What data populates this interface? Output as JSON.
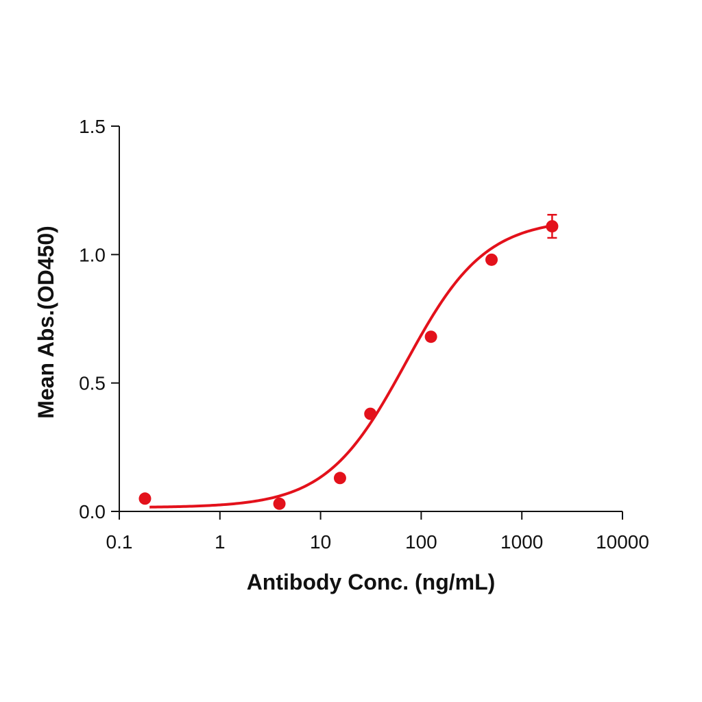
{
  "chart_data": {
    "type": "scatter",
    "title": "",
    "xlabel": "Antibody Conc. (ng/mL)",
    "ylabel": "Mean Abs.(OD450)",
    "x_scale": "log",
    "xlim": [
      0.1,
      10000
    ],
    "ylim": [
      0,
      1.5
    ],
    "x_ticks": [
      0.1,
      1,
      10,
      100,
      1000,
      10000
    ],
    "x_tick_labels": [
      "0.1",
      "1",
      "10",
      "100",
      "1000",
      "10000"
    ],
    "y_ticks": [
      0,
      0.5,
      1.0,
      1.5
    ],
    "y_tick_labels": [
      "0.0",
      "0.5",
      "1.0",
      "1.5"
    ],
    "grid": false,
    "legend": "none",
    "series": [
      {
        "color": "#e3111b",
        "points": [
          {
            "x": 0.18,
            "y": 0.05
          },
          {
            "x": 3.9,
            "y": 0.03
          },
          {
            "x": 15.6,
            "y": 0.13
          },
          {
            "x": 31.25,
            "y": 0.38
          },
          {
            "x": 125,
            "y": 0.68
          },
          {
            "x": 500,
            "y": 0.98
          },
          {
            "x": 2000,
            "y": 1.11,
            "error": 0.045
          }
        ],
        "fit": {
          "model": "4PL",
          "bottom": 0.015,
          "top": 1.14,
          "ec50": 70,
          "hill": 1.1,
          "x_range": [
            0.2,
            2000
          ]
        }
      }
    ]
  }
}
